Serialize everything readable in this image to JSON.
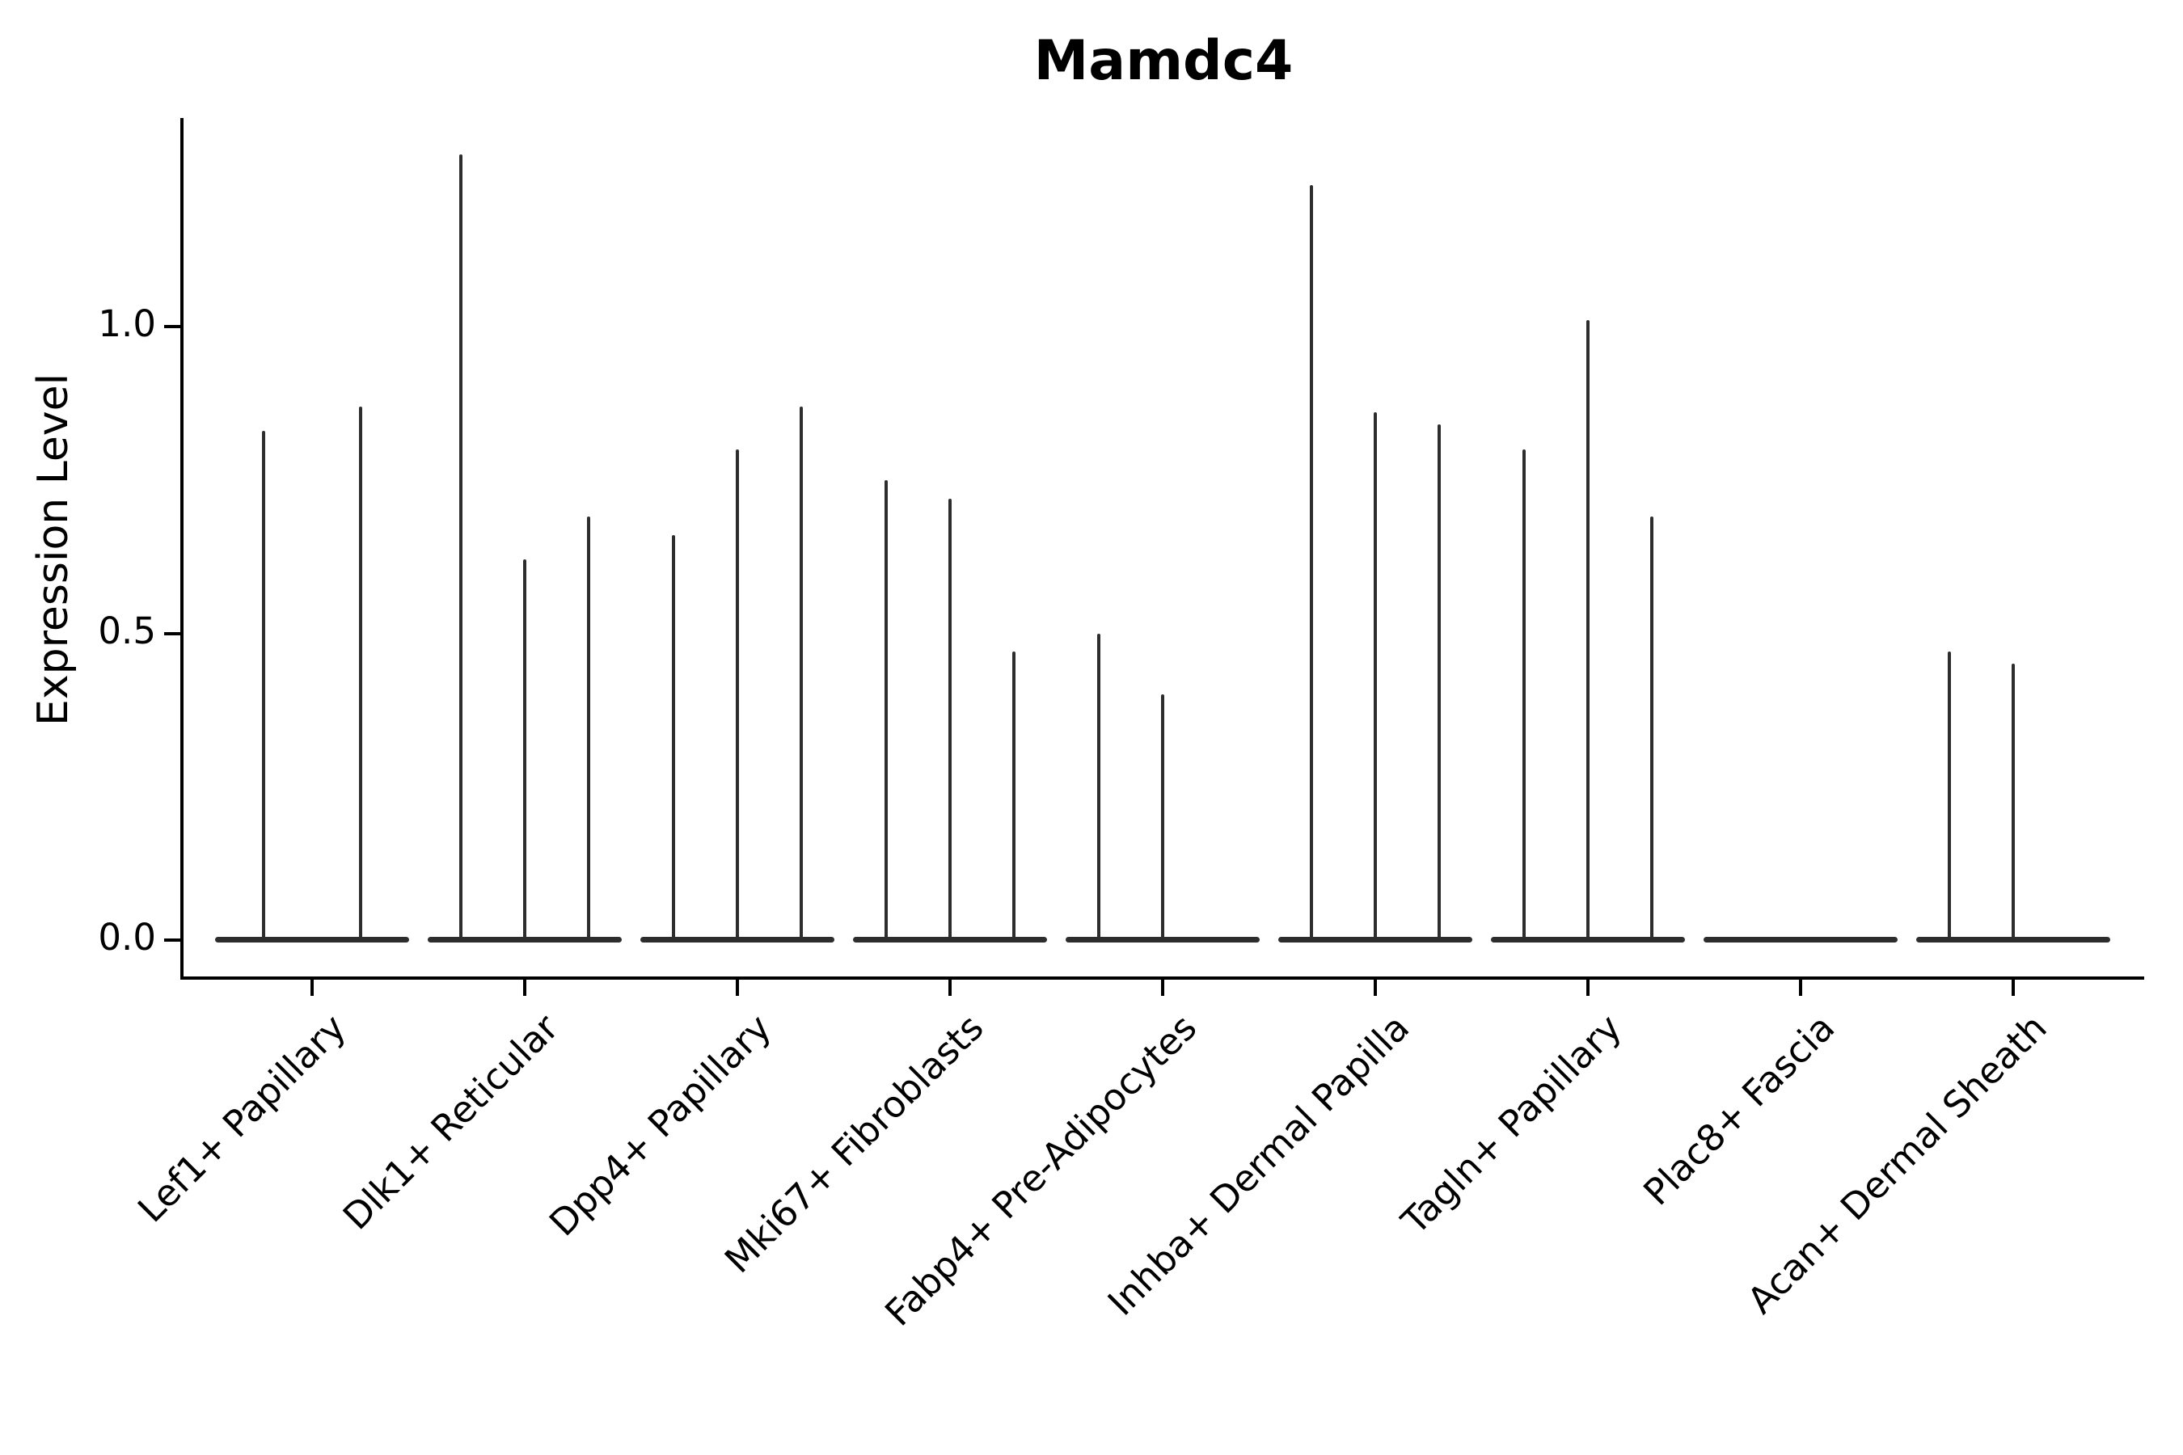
{
  "title": "Mamdc4",
  "axes": {
    "y_label": "Expression Level",
    "y_tick_labels": [
      "0.0",
      "0.5",
      "1.0"
    ]
  },
  "chart_data": {
    "type": "violin",
    "title": "Mamdc4",
    "xlabel": "",
    "ylabel": "Expression Level",
    "y_ticks": [
      0.0,
      0.5,
      1.0
    ],
    "ylim": [
      -0.06,
      1.34
    ],
    "grid": "off",
    "legend": "none",
    "violin_color": "#2d2d2d",
    "description": "Violin plot of Mamdc4 expression per fibroblast cluster; each cluster shows flat violins at 0 with thin spikes reaching the listed maximum expression values.",
    "categories": [
      "Lef1+ Papillary",
      "Dlk1+ Reticular",
      "Dpp4+ Papillary",
      "Mki67+ Fibroblasts",
      "Fabp4+ Pre-Adipocytes",
      "Inhba+ Dermal Papilla",
      "Tagln+ Papillary",
      "Plac8+ Fascia",
      "Acan+ Dermal Sheath"
    ],
    "groups": [
      {
        "label": "Lef1+ Papillary",
        "spike_offsets": [
          -60,
          60
        ],
        "spike_values": [
          0.83,
          0.87
        ]
      },
      {
        "label": "Dlk1+ Reticular",
        "spike_offsets": [
          -79,
          0,
          79
        ],
        "spike_values": [
          1.28,
          0.62,
          0.69
        ]
      },
      {
        "label": "Dpp4+ Papillary",
        "spike_offsets": [
          -79,
          0,
          79
        ],
        "spike_values": [
          0.66,
          0.8,
          0.87
        ]
      },
      {
        "label": "Mki67+ Fibroblasts",
        "spike_offsets": [
          -79,
          0,
          79
        ],
        "spike_values": [
          0.75,
          0.72,
          0.47
        ]
      },
      {
        "label": "Fabp4+ Pre-Adipocytes",
        "spike_offsets": [
          -79,
          0
        ],
        "spike_values": [
          0.5,
          0.4
        ]
      },
      {
        "label": "Inhba+ Dermal Papilla",
        "spike_offsets": [
          -79,
          0,
          79
        ],
        "spike_values": [
          1.23,
          0.86,
          0.84
        ]
      },
      {
        "label": "Tagln+ Papillary",
        "spike_offsets": [
          -79,
          0,
          79
        ],
        "spike_values": [
          0.8,
          1.01,
          0.69
        ]
      },
      {
        "label": "Plac8+ Fascia",
        "spike_offsets": [],
        "spike_values": []
      },
      {
        "label": "Acan+ Dermal Sheath",
        "spike_offsets": [
          -79,
          0
        ],
        "spike_values": [
          0.47,
          0.45
        ]
      }
    ]
  }
}
